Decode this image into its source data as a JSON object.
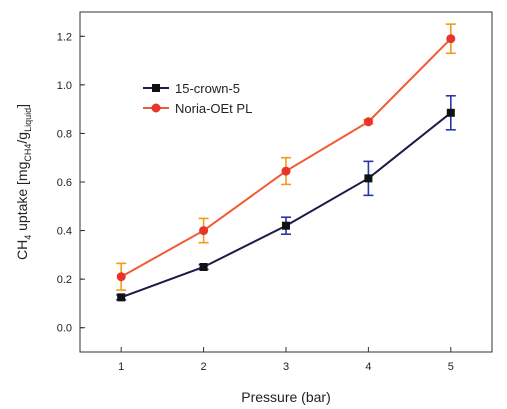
{
  "chart_data": {
    "type": "line",
    "xlabel": "Pressure (bar)",
    "ylabel_main": "CH",
    "ylabel_main_sub": "4",
    "ylabel_rest": " uptake [mg",
    "ylabel_sub1": "CH4",
    "ylabel_mid": "/g",
    "ylabel_sub2": "Liquid",
    "ylabel_end": "]",
    "xlim": [
      0.5,
      5.5
    ],
    "ylim": [
      -0.1,
      1.3
    ],
    "x": [
      1,
      2,
      3,
      4,
      5
    ],
    "x_ticks": [
      "1",
      "2",
      "3",
      "4",
      "5"
    ],
    "y_ticks": [
      "0.0",
      "0.2",
      "0.4",
      "0.6",
      "0.8",
      "1.0",
      "1.2"
    ],
    "y_tick_values": [
      0.0,
      0.2,
      0.4,
      0.6,
      0.8,
      1.0,
      1.2
    ],
    "legend_position": "upper-left",
    "series": [
      {
        "name": "15-crown-5",
        "marker": "square",
        "line_color": "#1b1a4a",
        "marker_color": "#111111",
        "error_color": "#2436a8",
        "values": [
          0.125,
          0.25,
          0.42,
          0.615,
          0.885
        ],
        "errors": [
          0.01,
          0.01,
          0.035,
          0.07,
          0.07
        ]
      },
      {
        "name": "Noria-OEt PL",
        "marker": "circle",
        "line_color": "#f15a32",
        "marker_color": "#e9342a",
        "error_color": "#f39a1d",
        "values": [
          0.21,
          0.4,
          0.645,
          0.848,
          1.19
        ],
        "errors": [
          0.055,
          0.05,
          0.055,
          0.008,
          0.06
        ]
      }
    ]
  }
}
